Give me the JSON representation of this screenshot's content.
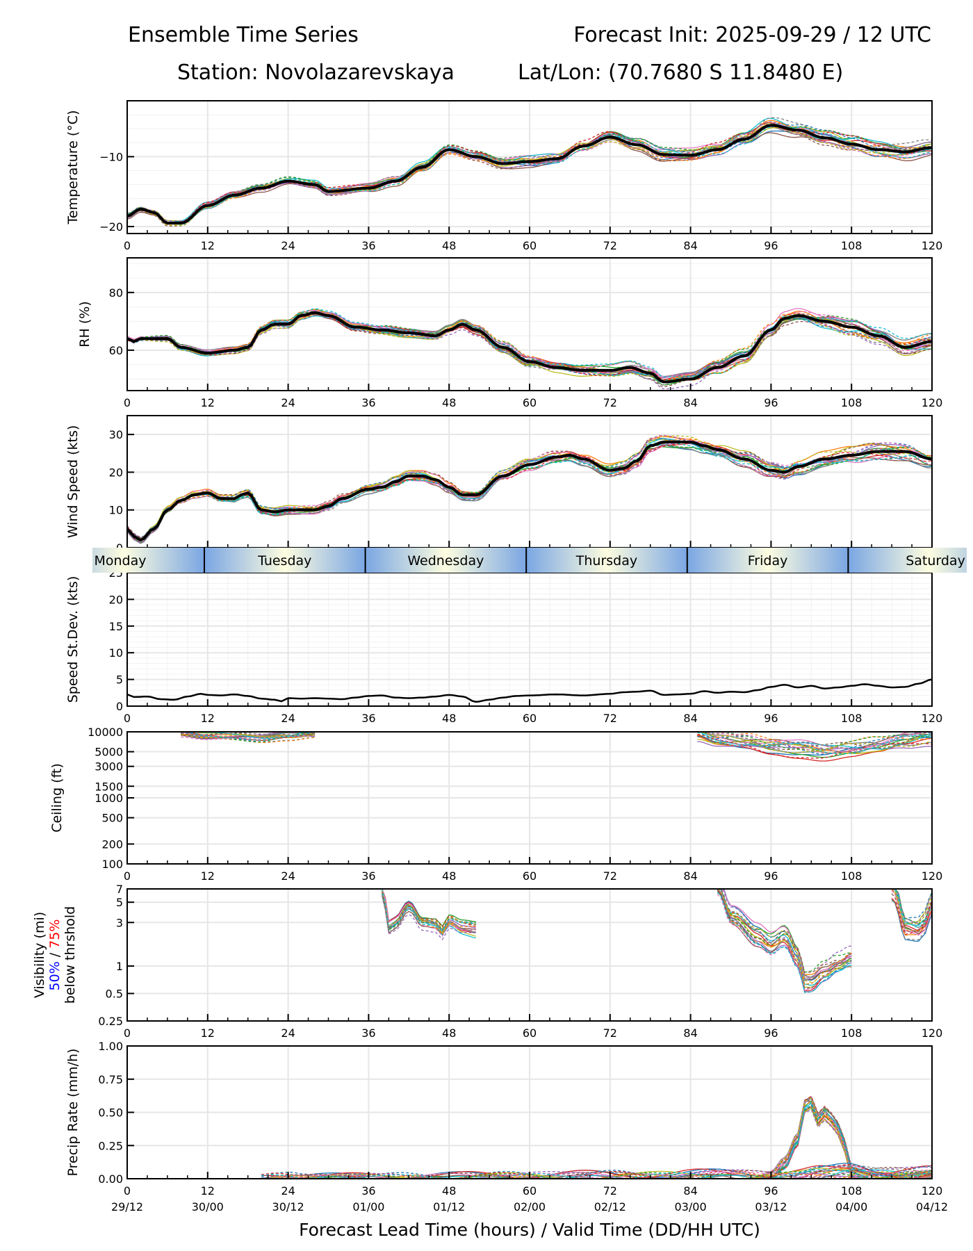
{
  "header": {
    "title_left": "Ensemble Time Series",
    "title_right": "Forecast Init: 2025-09-29 / 12 UTC",
    "station": "Station: Novolazarevskaya",
    "latlon": "Lat/Lon: (70.7680 S 11.8480 E)"
  },
  "colors": {
    "mean": "#000000",
    "spread": "#d9d9d9",
    "grid": "#e6e6e6",
    "day_band_edge": "#7aa6e3",
    "day_band_center": "#fdfde0",
    "members": [
      "#1f77b4",
      "#ff7f0e",
      "#2ca02c",
      "#d62728",
      "#9467bd",
      "#8c564b",
      "#e377c2",
      "#7f7f7f",
      "#bcbd22",
      "#17becf"
    ],
    "vis_50": "#0000ff",
    "vis_75": "#ff0000"
  },
  "chart_data": [
    {
      "id": "temperature",
      "type": "line",
      "ylabel": "Temperature (°C)",
      "ylim": [
        -21,
        -2
      ],
      "yticks": [
        -20,
        -10
      ],
      "ytick_labels": [
        "−20",
        "−10"
      ],
      "xlim": [
        0,
        120
      ],
      "xticks": [
        0,
        12,
        24,
        36,
        48,
        60,
        72,
        84,
        96,
        108,
        120
      ],
      "grid": true,
      "series": [
        {
          "name": "ensemble-mean",
          "x": [
            0,
            2,
            4,
            6,
            8,
            12,
            16,
            20,
            24,
            28,
            30,
            36,
            40,
            44,
            48,
            52,
            56,
            60,
            64,
            68,
            72,
            76,
            80,
            84,
            88,
            92,
            96,
            100,
            104,
            108,
            112,
            116,
            120
          ],
          "values": [
            -18.5,
            -17.5,
            -18,
            -19.5,
            -19.5,
            -17,
            -15.5,
            -14.5,
            -13.5,
            -14,
            -15,
            -14.5,
            -13.5,
            -11.5,
            -9,
            -10,
            -11,
            -10.7,
            -10.3,
            -8.5,
            -7.2,
            -8.3,
            -9.7,
            -9.8,
            -9,
            -7.5,
            -5.5,
            -6.2,
            -7.3,
            -8.2,
            -9,
            -9.3,
            -8.7
          ]
        }
      ]
    },
    {
      "id": "rh",
      "type": "line",
      "ylabel": "RH (%)",
      "ylim": [
        46,
        92
      ],
      "yticks": [
        60,
        80
      ],
      "ytick_labels": [
        "60",
        "80"
      ],
      "xlim": [
        0,
        120
      ],
      "xticks": [
        0,
        12,
        24,
        36,
        48,
        60,
        72,
        84,
        96,
        108,
        120
      ],
      "grid": true,
      "series": [
        {
          "name": "ensemble-mean",
          "x": [
            0,
            1,
            2,
            4,
            6,
            8,
            12,
            16,
            18,
            20,
            22,
            24,
            26,
            28,
            30,
            34,
            38,
            42,
            46,
            48,
            50,
            52,
            56,
            60,
            64,
            68,
            72,
            75,
            78,
            80,
            84,
            88,
            92,
            96,
            98,
            100,
            104,
            108,
            112,
            116,
            120
          ],
          "values": [
            64,
            63,
            64,
            64,
            64,
            61,
            59,
            60,
            61,
            67,
            69,
            69,
            72,
            73,
            72,
            68,
            67,
            66,
            65,
            67,
            69,
            67,
            61,
            56,
            54,
            53,
            53,
            54,
            52,
            49,
            50,
            54,
            58,
            67,
            71,
            72,
            70,
            68,
            65,
            61,
            63
          ]
        }
      ]
    },
    {
      "id": "wind_speed",
      "type": "line",
      "ylabel": "Wind Speed (kts)",
      "ylim": [
        0,
        35
      ],
      "yticks": [
        0,
        10,
        20,
        30
      ],
      "ytick_labels": [
        "0",
        "10",
        "20",
        "30"
      ],
      "xlim": [
        0,
        120
      ],
      "xticks": [
        0,
        12,
        24,
        36,
        48,
        60,
        72,
        84,
        96,
        108,
        120
      ],
      "grid": true,
      "series": [
        {
          "name": "ensemble-mean",
          "x": [
            0,
            1,
            2,
            4,
            6,
            8,
            10,
            12,
            14,
            16,
            17,
            18,
            20,
            22,
            24,
            28,
            30,
            32,
            36,
            38,
            40,
            42,
            44,
            46,
            48,
            50,
            52,
            56,
            60,
            64,
            66,
            68,
            72,
            74,
            76,
            78,
            80,
            84,
            86,
            88,
            92,
            96,
            98,
            100,
            104,
            108,
            112,
            116,
            120
          ],
          "values": [
            5,
            3,
            2,
            5,
            10,
            12.5,
            14,
            14.5,
            13,
            13,
            14,
            14.5,
            10,
            9.5,
            10,
            10,
            11,
            13,
            15.5,
            16,
            17.5,
            19,
            19,
            18,
            16,
            14,
            14,
            19,
            22,
            24,
            24.5,
            23.5,
            20.5,
            21,
            23,
            27,
            28,
            28,
            27,
            26,
            23.5,
            20.5,
            20,
            21.5,
            23.5,
            24.5,
            25.5,
            25.5,
            23.5
          ]
        }
      ]
    },
    {
      "id": "speed_stddev",
      "type": "line",
      "ylabel": "Speed St.Dev. (kts)",
      "ylim": [
        0,
        25
      ],
      "yticks": [
        0,
        5,
        10,
        15,
        20,
        25
      ],
      "ytick_labels": [
        "0",
        "5",
        "10",
        "15",
        "20",
        "25"
      ],
      "xlim": [
        0,
        120
      ],
      "xticks": [
        0,
        12,
        24,
        36,
        48,
        60,
        72,
        84,
        96,
        108,
        120
      ],
      "grid": true,
      "series": [
        {
          "name": "stddev",
          "x": [
            0,
            1,
            3,
            5,
            7,
            9,
            11,
            12,
            14,
            16,
            18,
            20,
            22,
            23,
            24,
            26,
            28,
            30,
            32,
            34,
            36,
            38,
            40,
            42,
            44,
            46,
            48,
            50,
            52,
            54,
            56,
            58,
            60,
            64,
            68,
            72,
            74,
            76,
            78,
            80,
            82,
            84,
            86,
            88,
            90,
            92,
            94,
            96,
            98,
            100,
            102,
            104,
            106,
            108,
            110,
            112,
            114,
            116,
            118,
            120
          ],
          "values": [
            2.2,
            1.7,
            1.8,
            1.3,
            1.2,
            1.8,
            2.3,
            2.1,
            2.0,
            2.2,
            1.9,
            1.4,
            1.2,
            0.9,
            1.5,
            1.4,
            1.5,
            1.4,
            1.3,
            1.6,
            1.9,
            2.0,
            1.6,
            1.5,
            1.6,
            1.8,
            2.1,
            1.8,
            0.8,
            1.2,
            1.6,
            1.9,
            2.0,
            2.2,
            2.0,
            2.3,
            2.6,
            2.7,
            2.9,
            2.1,
            2.2,
            2.3,
            2.8,
            2.5,
            2.7,
            2.6,
            3.0,
            3.6,
            4.0,
            3.5,
            3.8,
            3.3,
            3.5,
            3.8,
            4.1,
            3.8,
            3.5,
            3.6,
            4.2,
            5.0
          ]
        }
      ]
    },
    {
      "id": "ceiling",
      "type": "line",
      "ylabel": "Ceiling (ft)",
      "yscale": "log",
      "ylim": [
        100,
        10000
      ],
      "yticks": [
        100,
        200,
        500,
        1000,
        1500,
        3000,
        5000,
        10000
      ],
      "ytick_labels": [
        "100",
        "200",
        "500",
        "1000",
        "1500",
        "3000",
        "5000",
        "10000"
      ],
      "xlim": [
        0,
        120
      ],
      "xticks": [
        0,
        12,
        24,
        36,
        48,
        60,
        72,
        84,
        96,
        108,
        120
      ],
      "grid": true,
      "series": [
        {
          "name": "members-early",
          "x": [
            8,
            12,
            16,
            20,
            24,
            28
          ],
          "values": [
            9500,
            8600,
            8400,
            8000,
            8700,
            9600
          ]
        },
        {
          "name": "members-late",
          "x": [
            85,
            88,
            92,
            96,
            100,
            104,
            108,
            112,
            116,
            120
          ],
          "values": [
            9000,
            7500,
            7000,
            6000,
            5500,
            5000,
            5500,
            6000,
            7000,
            8000
          ]
        }
      ]
    },
    {
      "id": "visibility",
      "type": "line",
      "ylabel": "Visibility (mi)",
      "ylabel_50": "50%",
      "ylabel_sep": " / ",
      "ylabel_75": "75%",
      "ylabel_line3": "below thrshold",
      "yscale": "log",
      "ylim": [
        0.25,
        7
      ],
      "yticks": [
        0.25,
        0.5,
        1,
        3,
        5,
        7
      ],
      "ytick_labels": [
        "0.25",
        "0.5",
        "1",
        "3",
        "5",
        "7"
      ],
      "xlim": [
        0,
        120
      ],
      "xticks": [
        0,
        12,
        24,
        36,
        48,
        60,
        72,
        84,
        96,
        108,
        120
      ],
      "grid": true,
      "series": [
        {
          "name": "members-day2",
          "x": [
            38,
            39,
            40,
            42,
            44,
            46,
            47,
            48,
            50,
            52
          ],
          "values": [
            7,
            2.7,
            3,
            4.5,
            3,
            2.8,
            2.3,
            3,
            2.6,
            2.5
          ]
        },
        {
          "name": "members-day4",
          "x": [
            88,
            90,
            94,
            96,
            98,
            100,
            101,
            102,
            104,
            106,
            108
          ],
          "values": [
            7,
            3.5,
            2.2,
            1.8,
            2.2,
            1.3,
            0.7,
            0.7,
            0.9,
            1.1,
            1.3
          ]
        },
        {
          "name": "member-orange-late",
          "x": [
            114,
            116,
            118,
            119,
            120
          ],
          "values": [
            7,
            2.6,
            2.5,
            3,
            4.8
          ]
        }
      ]
    },
    {
      "id": "precip_rate",
      "type": "line",
      "ylabel": "Precip Rate (mm/h)",
      "ylim": [
        0,
        1
      ],
      "yticks": [
        0,
        0.25,
        0.5,
        0.75,
        1
      ],
      "ytick_labels": [
        "0.00",
        "0.25",
        "0.50",
        "0.75",
        "1.00"
      ],
      "xlim": [
        0,
        120
      ],
      "xticks": [
        0,
        12,
        24,
        36,
        48,
        60,
        72,
        84,
        96,
        108,
        120
      ],
      "xtick_labels_time": [
        "29/12",
        "30/00",
        "30/12",
        "01/00",
        "01/12",
        "02/00",
        "02/12",
        "03/00",
        "03/12",
        "04/00",
        "04/12"
      ],
      "xlabel": "Forecast Lead Time (hours) / Valid Time (DD/HH UTC)",
      "grid": true,
      "series": [
        {
          "name": "member-gray-dashed",
          "x": [
            94,
            96,
            98,
            100,
            101,
            102,
            103,
            104,
            105,
            106,
            107,
            108,
            110,
            120
          ],
          "values": [
            0,
            0.03,
            0.12,
            0.3,
            0.55,
            0.58,
            0.45,
            0.5,
            0.45,
            0.38,
            0.25,
            0.05,
            0.02,
            0.01
          ]
        },
        {
          "name": "members-low",
          "x": [
            20,
            22,
            24,
            26,
            100,
            104,
            108,
            112,
            120
          ],
          "values": [
            0.01,
            0.02,
            0.02,
            0.01,
            0.02,
            0.04,
            0.06,
            0.04,
            0.03
          ]
        }
      ]
    }
  ],
  "day_band": {
    "days": [
      "Monday",
      "Tuesday",
      "Wednesday",
      "Thursday",
      "Friday",
      "Saturday"
    ],
    "boundaries_hours": [
      11.5,
      35.5,
      59.5,
      83.5,
      107.5
    ]
  }
}
